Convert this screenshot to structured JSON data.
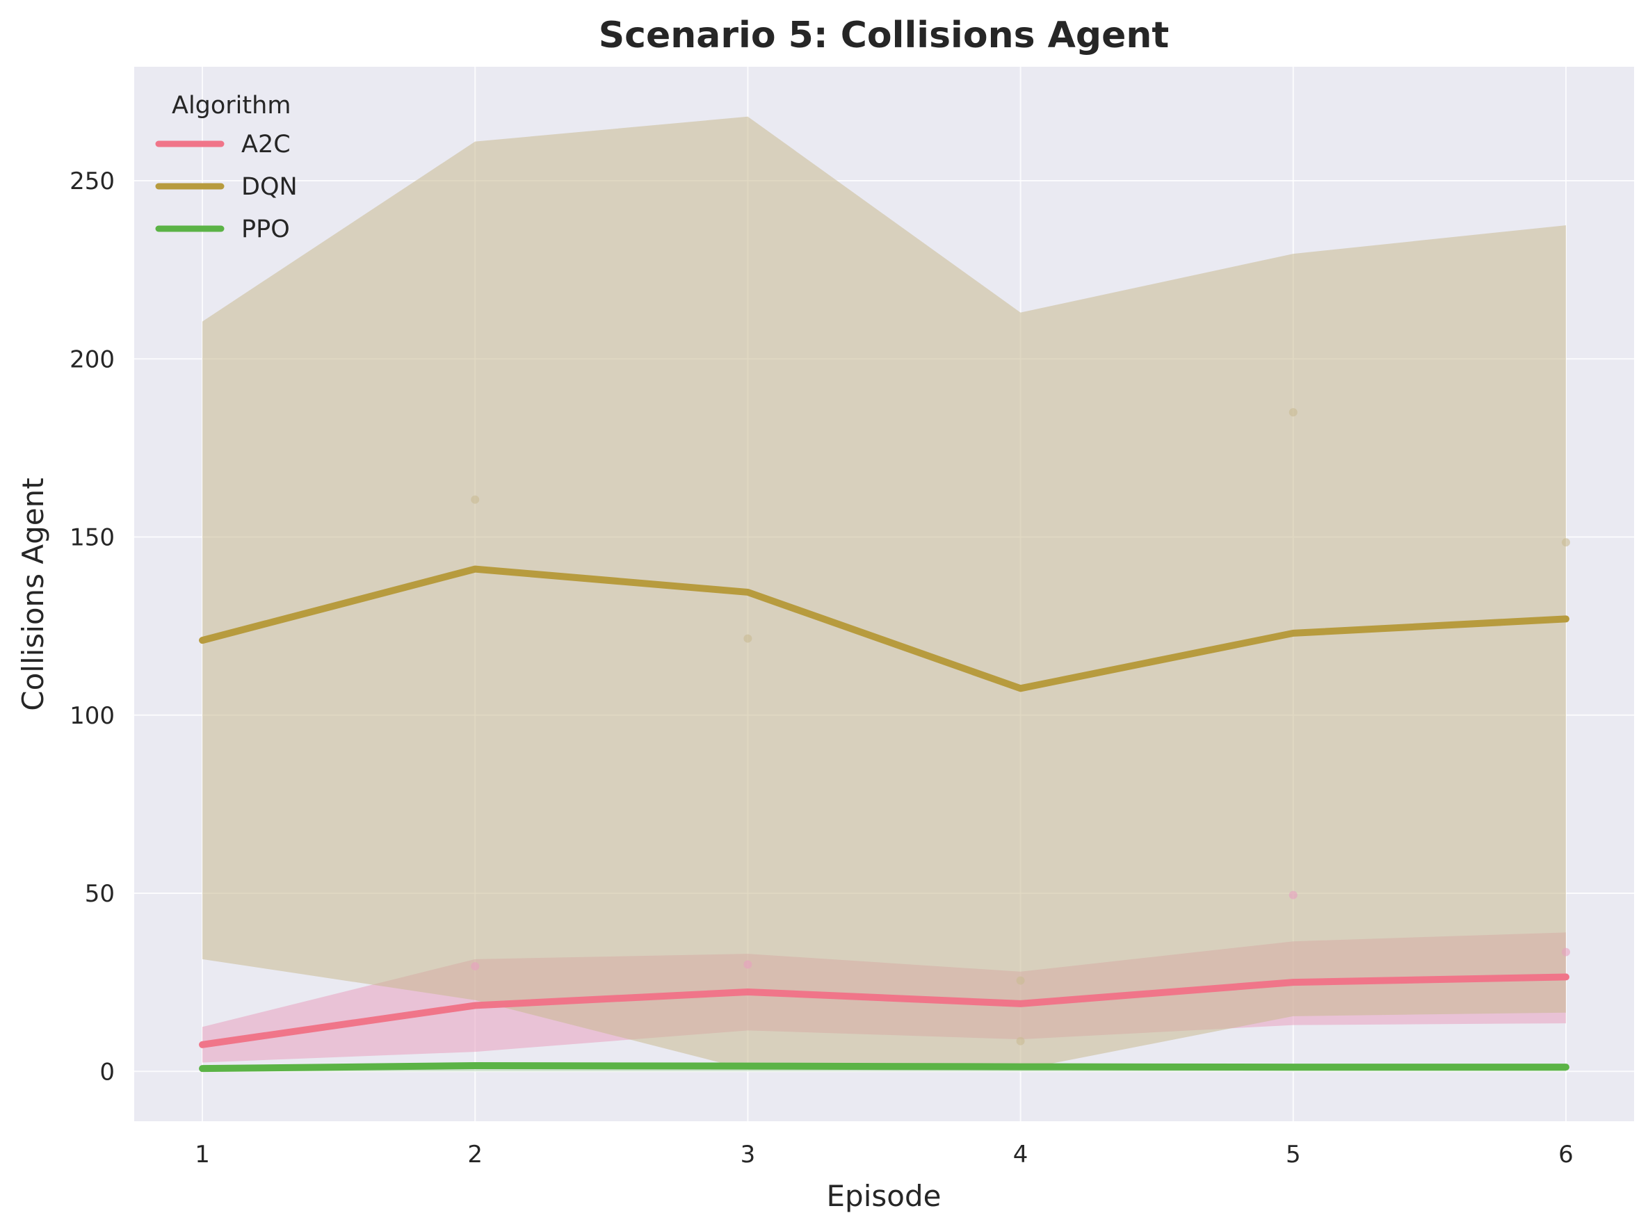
{
  "chart_data": {
    "type": "line",
    "title": "Scenario 5: Collisions Agent",
    "xlabel": "Episode",
    "ylabel": "Collisions Agent",
    "x": [
      1,
      2,
      3,
      4,
      5,
      6
    ],
    "xticks": [
      "1",
      "2",
      "3",
      "4",
      "5",
      "6"
    ],
    "yticks": [
      "0",
      "50",
      "100",
      "150",
      "200",
      "250"
    ],
    "ylim": [
      -14,
      282
    ],
    "xlim": [
      0.75,
      6.25
    ],
    "grid": true,
    "legend": {
      "title": "Algorithm",
      "placement": "top-left"
    },
    "series": [
      {
        "name": "A2C",
        "color": "#f07589",
        "band_color": "#e8a0bf",
        "values": [
          7.5,
          18.5,
          22.3,
          19.0,
          25.0,
          26.5
        ],
        "band_lower": [
          2.5,
          5.5,
          11.5,
          9.0,
          13.0,
          13.5
        ],
        "band_upper": [
          12.5,
          31.5,
          33.0,
          28.0,
          36.5,
          39.0
        ],
        "points": [
          [
            2,
            29.5
          ],
          [
            3,
            30.0
          ],
          [
            5,
            49.5
          ],
          [
            6,
            33.5
          ]
        ]
      },
      {
        "name": "DQN",
        "color": "#b79b3e",
        "band_color": "#c9ba92",
        "values": [
          121.0,
          141.0,
          134.5,
          107.5,
          123.0,
          127.0
        ],
        "band_lower": [
          31.5,
          20.0,
          0.5,
          0.5,
          15.5,
          16.5
        ],
        "band_upper": [
          210.5,
          261.0,
          268.0,
          213.0,
          229.5,
          237.5
        ],
        "points": [
          [
            2,
            160.5
          ],
          [
            3,
            121.5
          ],
          [
            4,
            25.5
          ],
          [
            4,
            8.5
          ],
          [
            5,
            185.0
          ],
          [
            6,
            148.5
          ]
        ]
      },
      {
        "name": "PPO",
        "color": "#5bb346",
        "band_color": "#b9dcb6",
        "values": [
          0.8,
          1.6,
          1.5,
          1.3,
          1.2,
          1.2
        ],
        "band_lower": [
          0,
          0,
          0,
          0,
          0,
          0
        ],
        "band_upper": [
          1.5,
          2.5,
          2.5,
          2.0,
          2.0,
          2.0
        ],
        "points": []
      }
    ]
  }
}
